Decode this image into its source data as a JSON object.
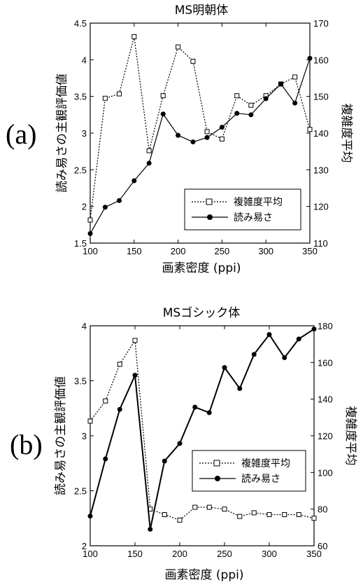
{
  "chart_data": [
    {
      "type": "line",
      "panel_label": "(a)",
      "title": "MS明朝体",
      "xlabel": "画素密度 (ppi)",
      "ylabel_left": "読み易さの主観評価値",
      "ylabel_right": "複雑度平均",
      "xlim": [
        100,
        350
      ],
      "ylim_left": [
        1.5,
        4.5
      ],
      "ylim_right": [
        110,
        170
      ],
      "x_ticks": [
        "100",
        "150",
        "200",
        "250",
        "300",
        "350"
      ],
      "y_left_ticks": [
        "1.5",
        "2",
        "2.5",
        "3",
        "3.5",
        "4",
        "4.5"
      ],
      "y_right_ticks": [
        "110",
        "120",
        "130",
        "140",
        "150",
        "160",
        "170"
      ],
      "legend": {
        "position": "bottom-right",
        "entries": [
          "複雑度平均",
          "読み易さ"
        ]
      },
      "series": [
        {
          "name": "複雑度平均",
          "axis": "right",
          "style": "dotted-square",
          "x": [
            100,
            117,
            133,
            150,
            167,
            183,
            200,
            217,
            233,
            250,
            267,
            283,
            300,
            317,
            333,
            350
          ],
          "values": [
            116.3,
            149.5,
            150.7,
            166.3,
            135.2,
            150.2,
            163.5,
            159.6,
            140.4,
            138.4,
            150.2,
            147.6,
            150.2,
            153.4,
            155.3,
            141.0
          ]
        },
        {
          "name": "読み易さ",
          "axis": "left",
          "style": "solid-circle",
          "x": [
            100,
            117,
            133,
            150,
            167,
            183,
            200,
            217,
            233,
            250,
            267,
            283,
            300,
            317,
            333,
            350
          ],
          "values": [
            1.63,
            1.99,
            2.08,
            2.35,
            2.59,
            3.26,
            2.97,
            2.88,
            2.94,
            3.08,
            3.27,
            3.25,
            3.47,
            3.67,
            3.41,
            4.02
          ]
        }
      ]
    },
    {
      "type": "line",
      "panel_label": "(b)",
      "title": "MSゴシック体",
      "xlabel": "画素密度 (ppi)",
      "ylabel_left": "読み易さの主観評価値",
      "ylabel_right": "複雑度平均",
      "xlim": [
        100,
        350
      ],
      "ylim_left": [
        2,
        4
      ],
      "ylim_right": [
        60,
        180
      ],
      "x_ticks": [
        "100",
        "150",
        "200",
        "250",
        "300",
        "350"
      ],
      "y_left_ticks": [
        "2",
        "2.5",
        "3",
        "3.5",
        "4"
      ],
      "y_right_ticks": [
        "60",
        "80",
        "100",
        "120",
        "140",
        "160",
        "180"
      ],
      "legend": {
        "position": "middle-right",
        "entries": [
          "複雑度平均",
          "読み易さ"
        ]
      },
      "series": [
        {
          "name": "複雑度平均",
          "axis": "right",
          "style": "dotted-square",
          "x": [
            100,
            117,
            133,
            150,
            167,
            183,
            200,
            217,
            233,
            250,
            267,
            283,
            300,
            317,
            333,
            350
          ],
          "values": [
            128,
            139,
            159,
            172,
            80,
            77,
            74,
            81,
            81,
            80,
            76,
            78,
            77,
            77,
            77,
            75
          ]
        },
        {
          "name": "読み易さ",
          "axis": "left",
          "style": "solid-circle",
          "x": [
            100,
            117,
            133,
            150,
            167,
            183,
            200,
            217,
            233,
            250,
            267,
            283,
            300,
            317,
            333,
            350
          ],
          "values": [
            2.27,
            2.79,
            3.24,
            3.55,
            2.15,
            2.77,
            2.93,
            3.26,
            3.21,
            3.62,
            3.43,
            3.74,
            3.92,
            3.71,
            3.88,
            3.97
          ]
        }
      ]
    }
  ]
}
